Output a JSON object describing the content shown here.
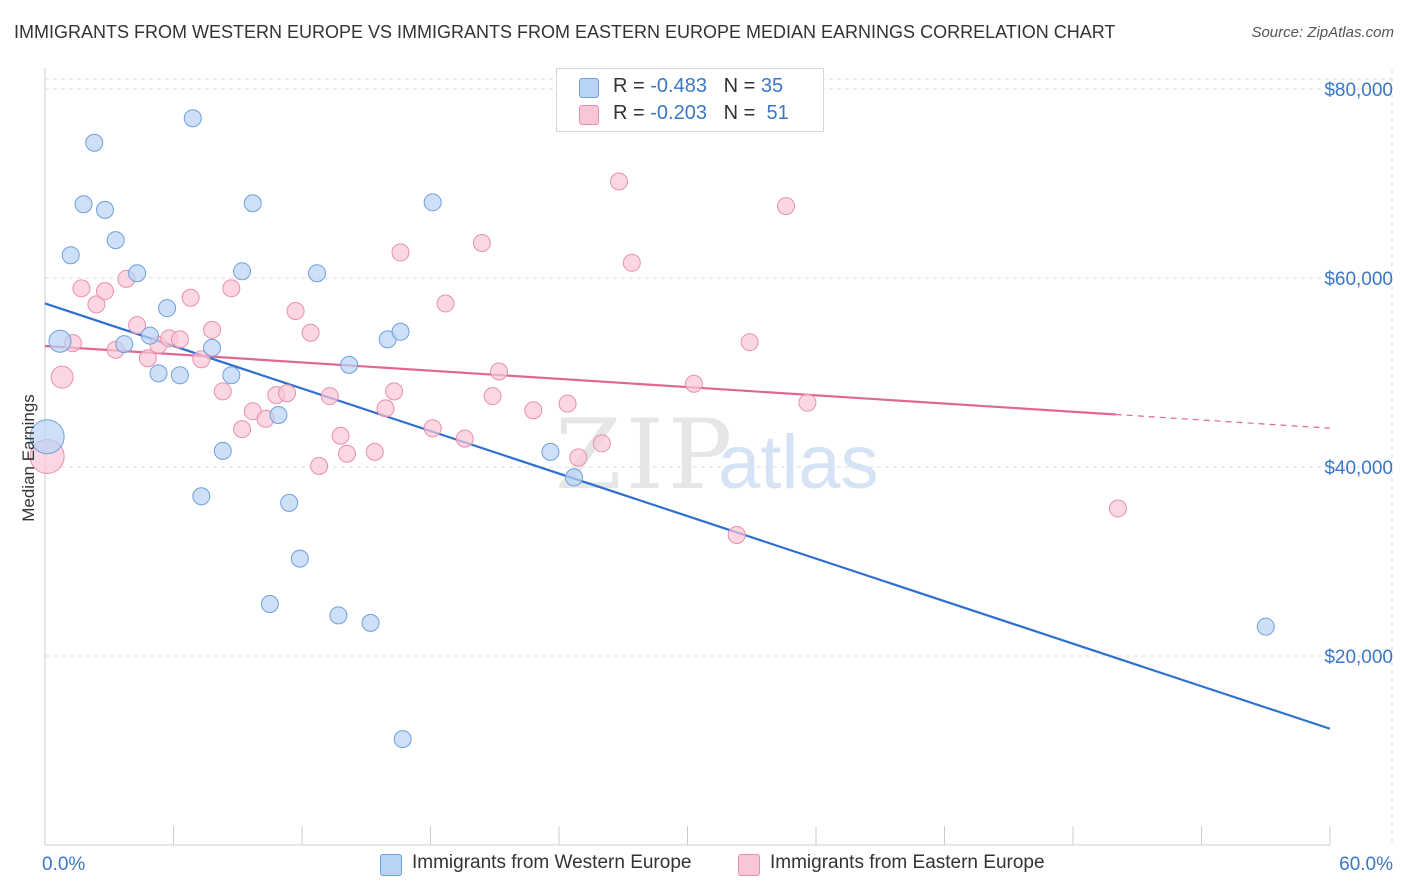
{
  "title": "IMMIGRANTS FROM WESTERN EUROPE VS IMMIGRANTS FROM EASTERN EUROPE MEDIAN EARNINGS CORRELATION CHART",
  "source": "Source: ZipAtlas.com",
  "watermark": {
    "zip": "ZIP",
    "atlas": "atlas"
  },
  "legend": {
    "rows": [
      {
        "r_label": "R =",
        "r_value": "-0.483",
        "n_label": "N =",
        "n_value": "35"
      },
      {
        "r_label": "R =",
        "r_value": "-0.203",
        "n_label": "N =",
        "n_value": "51"
      }
    ]
  },
  "colors": {
    "blue_fill": "#b9d3f5",
    "blue_stroke": "#6f9fdc",
    "blue_line": "#2e6fd1",
    "pink_fill": "#f9c6d6",
    "pink_stroke": "#e98fae",
    "pink_line": "#e0688f",
    "grid": "#dddddd",
    "tick_text": "#3a77c8"
  },
  "chart_data": {
    "type": "scatter",
    "title": "IMMIGRANTS FROM WESTERN EUROPE VS IMMIGRANTS FROM EASTERN EUROPE MEDIAN EARNINGS CORRELATION CHART",
    "xlabel": "",
    "ylabel": "Median Earnings",
    "xlim": [
      0,
      60
    ],
    "ylim": [
      0,
      82000
    ],
    "x_tick_labels": [
      "0.0%",
      "60.0%"
    ],
    "y_ticks": [
      20000,
      40000,
      60000,
      80000
    ],
    "y_tick_labels": [
      "$20,000",
      "$40,000",
      "$60,000",
      "$80,000"
    ],
    "grid": true,
    "legend_position": "top-center",
    "series": [
      {
        "name": "Immigrants from Western Europe",
        "color": "#6f9fdc",
        "trend": {
          "x0": 0,
          "y0": 57300,
          "x1": 60,
          "y1": 12300,
          "dash_from": null
        },
        "points": [
          {
            "x": 0.1,
            "y": 43200,
            "s": 3
          },
          {
            "x": 0.7,
            "y": 53300,
            "s": 2
          },
          {
            "x": 1.2,
            "y": 62400,
            "s": 1
          },
          {
            "x": 1.8,
            "y": 67800,
            "s": 1
          },
          {
            "x": 2.3,
            "y": 74300,
            "s": 1
          },
          {
            "x": 2.8,
            "y": 67200,
            "s": 1
          },
          {
            "x": 3.3,
            "y": 64000,
            "s": 1
          },
          {
            "x": 3.7,
            "y": 53000,
            "s": 1
          },
          {
            "x": 4.3,
            "y": 60500,
            "s": 1
          },
          {
            "x": 4.9,
            "y": 53900,
            "s": 1
          },
          {
            "x": 5.3,
            "y": 49900,
            "s": 1
          },
          {
            "x": 5.7,
            "y": 56800,
            "s": 1
          },
          {
            "x": 6.3,
            "y": 49700,
            "s": 1
          },
          {
            "x": 6.9,
            "y": 76900,
            "s": 1
          },
          {
            "x": 7.3,
            "y": 36900,
            "s": 1
          },
          {
            "x": 7.8,
            "y": 52600,
            "s": 1
          },
          {
            "x": 8.3,
            "y": 41700,
            "s": 1
          },
          {
            "x": 8.7,
            "y": 49700,
            "s": 1
          },
          {
            "x": 9.2,
            "y": 60700,
            "s": 1
          },
          {
            "x": 9.7,
            "y": 67900,
            "s": 1
          },
          {
            "x": 10.5,
            "y": 25500,
            "s": 1
          },
          {
            "x": 10.9,
            "y": 45500,
            "s": 1
          },
          {
            "x": 11.4,
            "y": 36200,
            "s": 1
          },
          {
            "x": 11.9,
            "y": 30300,
            "s": 1
          },
          {
            "x": 12.7,
            "y": 60500,
            "s": 1
          },
          {
            "x": 13.7,
            "y": 24300,
            "s": 1
          },
          {
            "x": 14.2,
            "y": 50800,
            "s": 1
          },
          {
            "x": 15.2,
            "y": 23500,
            "s": 1
          },
          {
            "x": 16.0,
            "y": 53500,
            "s": 1
          },
          {
            "x": 16.6,
            "y": 54300,
            "s": 1
          },
          {
            "x": 16.7,
            "y": 11200,
            "s": 1
          },
          {
            "x": 18.1,
            "y": 68000,
            "s": 1
          },
          {
            "x": 23.6,
            "y": 41600,
            "s": 1
          },
          {
            "x": 24.7,
            "y": 38900,
            "s": 1
          },
          {
            "x": 57.0,
            "y": 23100,
            "s": 1
          }
        ]
      },
      {
        "name": "Immigrants from Eastern Europe",
        "color": "#e98fae",
        "trend": {
          "x0": 0,
          "y0": 52800,
          "x1": 60,
          "y1": 44100,
          "dash_from": 50
        },
        "points": [
          {
            "x": 0.1,
            "y": 41100,
            "s": 3
          },
          {
            "x": 0.8,
            "y": 49500,
            "s": 2
          },
          {
            "x": 1.3,
            "y": 53100,
            "s": 1
          },
          {
            "x": 1.7,
            "y": 58900,
            "s": 1
          },
          {
            "x": 2.4,
            "y": 57200,
            "s": 1
          },
          {
            "x": 2.8,
            "y": 58600,
            "s": 1
          },
          {
            "x": 3.3,
            "y": 52400,
            "s": 1
          },
          {
            "x": 3.8,
            "y": 59900,
            "s": 1
          },
          {
            "x": 4.3,
            "y": 55000,
            "s": 1
          },
          {
            "x": 4.8,
            "y": 51500,
            "s": 1
          },
          {
            "x": 5.3,
            "y": 52900,
            "s": 1
          },
          {
            "x": 5.8,
            "y": 53600,
            "s": 1
          },
          {
            "x": 6.3,
            "y": 53500,
            "s": 1
          },
          {
            "x": 6.8,
            "y": 57900,
            "s": 1
          },
          {
            "x": 7.3,
            "y": 51400,
            "s": 1
          },
          {
            "x": 7.8,
            "y": 54500,
            "s": 1
          },
          {
            "x": 8.3,
            "y": 48000,
            "s": 1
          },
          {
            "x": 8.7,
            "y": 58900,
            "s": 1
          },
          {
            "x": 9.2,
            "y": 44000,
            "s": 1
          },
          {
            "x": 9.7,
            "y": 45900,
            "s": 1
          },
          {
            "x": 10.3,
            "y": 45100,
            "s": 1
          },
          {
            "x": 10.8,
            "y": 47600,
            "s": 1
          },
          {
            "x": 11.3,
            "y": 47800,
            "s": 1
          },
          {
            "x": 11.7,
            "y": 56500,
            "s": 1
          },
          {
            "x": 12.4,
            "y": 54200,
            "s": 1
          },
          {
            "x": 12.8,
            "y": 40100,
            "s": 1
          },
          {
            "x": 13.3,
            "y": 47500,
            "s": 1
          },
          {
            "x": 13.8,
            "y": 43300,
            "s": 1
          },
          {
            "x": 14.1,
            "y": 41400,
            "s": 1
          },
          {
            "x": 15.4,
            "y": 41600,
            "s": 1
          },
          {
            "x": 15.9,
            "y": 46200,
            "s": 1
          },
          {
            "x": 16.3,
            "y": 48000,
            "s": 1
          },
          {
            "x": 16.6,
            "y": 62700,
            "s": 1
          },
          {
            "x": 18.1,
            "y": 44100,
            "s": 1
          },
          {
            "x": 18.7,
            "y": 57300,
            "s": 1
          },
          {
            "x": 19.6,
            "y": 43000,
            "s": 1
          },
          {
            "x": 20.4,
            "y": 63700,
            "s": 1
          },
          {
            "x": 20.9,
            "y": 47500,
            "s": 1
          },
          {
            "x": 21.2,
            "y": 50100,
            "s": 1
          },
          {
            "x": 22.8,
            "y": 46000,
            "s": 1
          },
          {
            "x": 24.4,
            "y": 46700,
            "s": 1
          },
          {
            "x": 24.9,
            "y": 41000,
            "s": 1
          },
          {
            "x": 26.0,
            "y": 42500,
            "s": 1
          },
          {
            "x": 26.8,
            "y": 70200,
            "s": 1
          },
          {
            "x": 27.4,
            "y": 61600,
            "s": 1
          },
          {
            "x": 30.3,
            "y": 48800,
            "s": 1
          },
          {
            "x": 32.3,
            "y": 32800,
            "s": 1
          },
          {
            "x": 32.9,
            "y": 53200,
            "s": 1
          },
          {
            "x": 34.6,
            "y": 67600,
            "s": 1
          },
          {
            "x": 35.6,
            "y": 46800,
            "s": 1
          },
          {
            "x": 50.1,
            "y": 35600,
            "s": 1
          }
        ]
      }
    ]
  }
}
